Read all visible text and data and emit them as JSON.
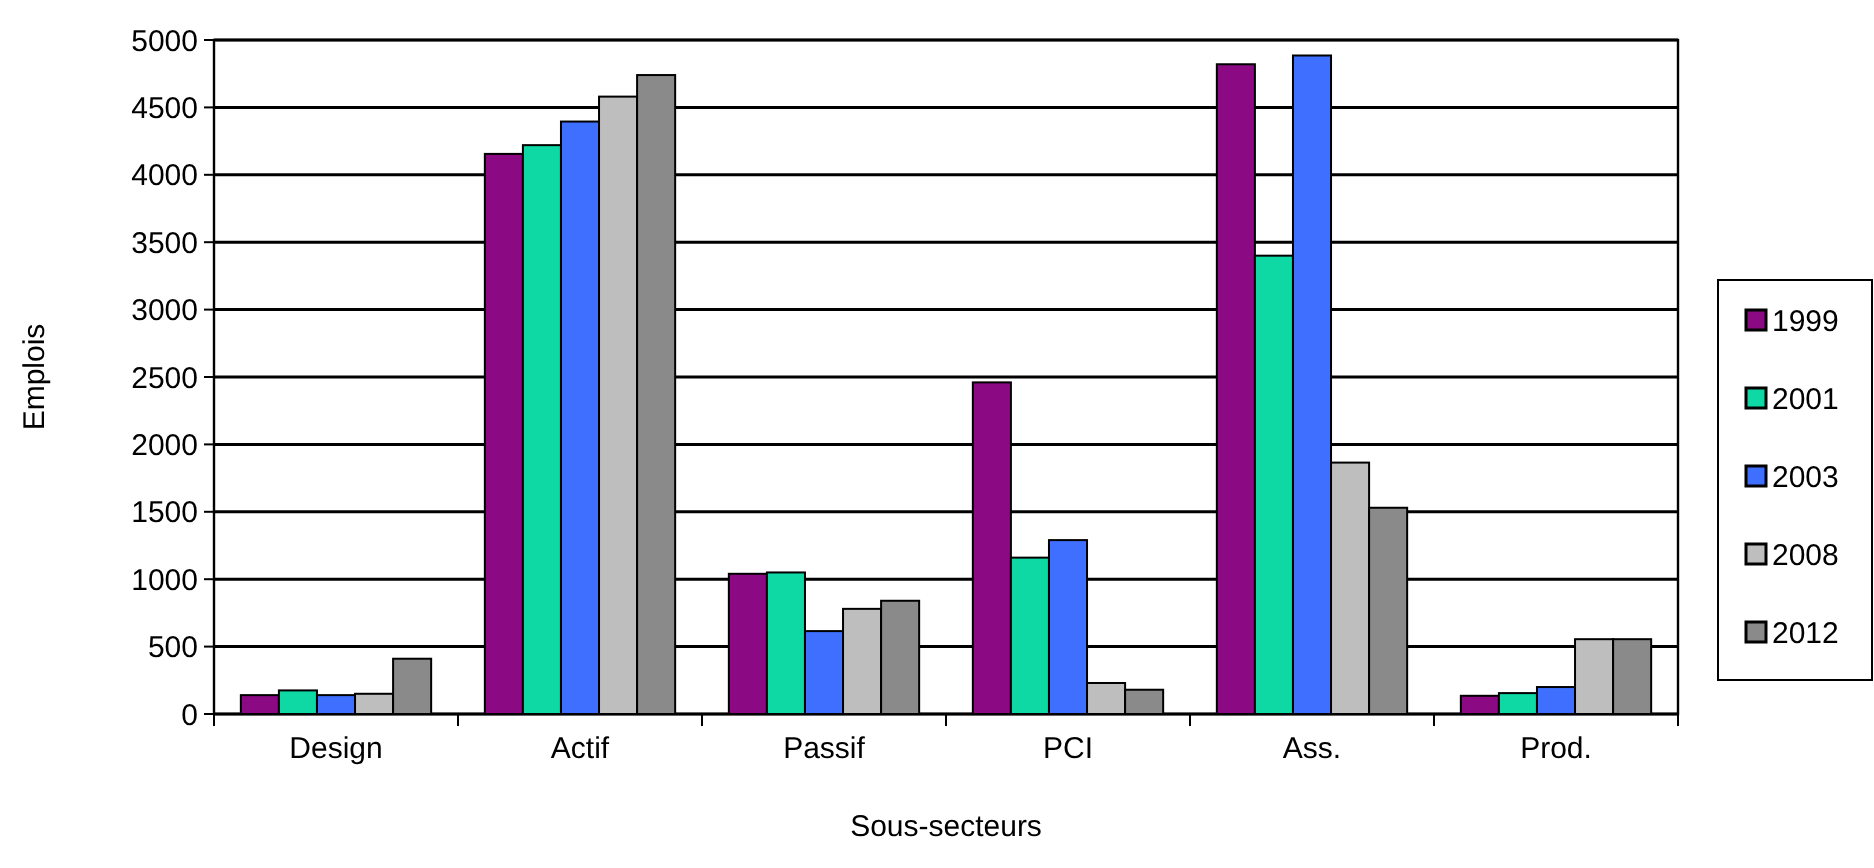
{
  "chart_data": {
    "type": "bar",
    "xlabel": "Sous-secteurs",
    "ylabel": "Emplois",
    "categories": [
      "Design",
      "Actif",
      "Passif",
      "PCI",
      "Ass.",
      "Prod."
    ],
    "series": [
      {
        "name": "1999",
        "color": "#8b0a84",
        "values": [
          140,
          4155,
          1040,
          2460,
          4820,
          135
        ]
      },
      {
        "name": "2001",
        "color": "#0ed8a4",
        "values": [
          175,
          4220,
          1050,
          1160,
          3400,
          155
        ]
      },
      {
        "name": "2003",
        "color": "#3f6fff",
        "values": [
          140,
          4395,
          615,
          1290,
          4885,
          200
        ]
      },
      {
        "name": "2008",
        "color": "#bebebe",
        "values": [
          150,
          4580,
          780,
          230,
          1865,
          555
        ]
      },
      {
        "name": "2012",
        "color": "#8a8a8a",
        "values": [
          410,
          4740,
          840,
          180,
          1530,
          555
        ]
      }
    ],
    "ylim": [
      0,
      5000
    ],
    "yticks": [
      0,
      500,
      1000,
      1500,
      2000,
      2500,
      3000,
      3500,
      4000,
      4500,
      5000
    ],
    "grid": "y",
    "legend": "right"
  }
}
